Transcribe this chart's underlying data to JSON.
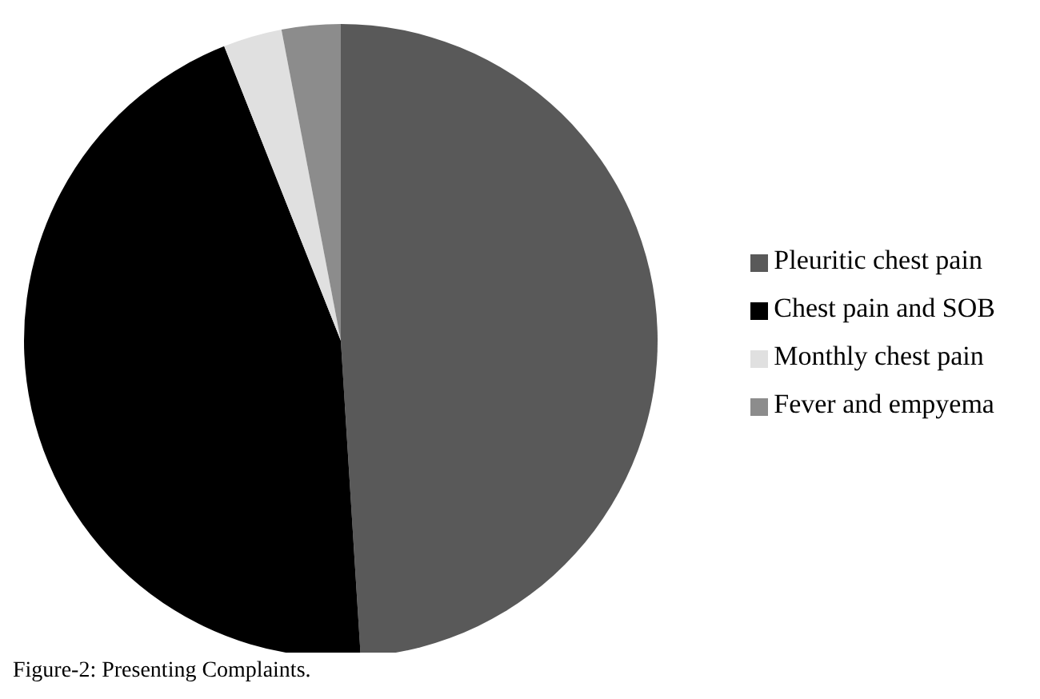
{
  "chart_data": {
    "type": "pie",
    "categories": [
      "Pleuritic chest pain",
      "Chest pain and SOB",
      "Monthly chest pain",
      "Fever and empyema"
    ],
    "values": [
      49,
      45,
      3,
      3
    ],
    "colors": [
      "#595959",
      "#000000",
      "#e0e0e0",
      "#8c8c8c"
    ],
    "legend": "right",
    "annotations": [
      "Figure-2: Presenting Complaints."
    ]
  }
}
